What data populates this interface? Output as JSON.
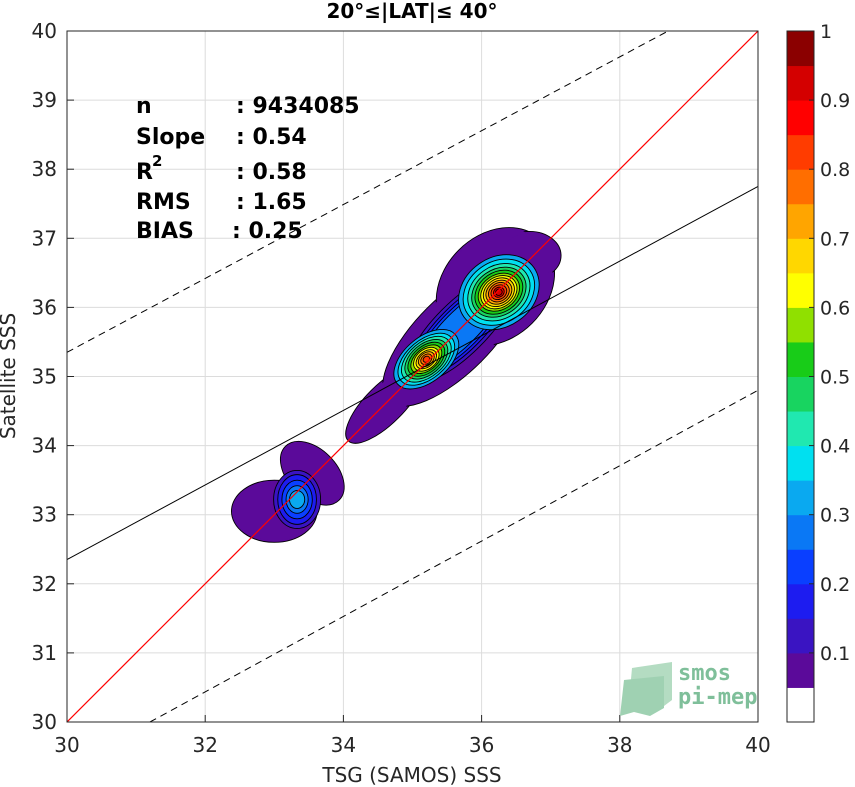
{
  "chart_data": {
    "type": "heatmap",
    "subtype": "density-contour-scatter",
    "title": "20°≤|LAT|≤ 40°",
    "xlabel": "TSG (SAMOS) SSS",
    "ylabel": "Satellite SSS",
    "xlim": [
      30,
      40
    ],
    "ylim": [
      30,
      40
    ],
    "x_ticks": [
      "30",
      "32",
      "34",
      "36",
      "38",
      "40"
    ],
    "y_ticks": [
      "30",
      "31",
      "32",
      "33",
      "34",
      "35",
      "36",
      "37",
      "38",
      "39",
      "40"
    ],
    "grid": true,
    "stats": {
      "n_label": "n",
      "n_value": ": 9434085",
      "slope_label": "Slope",
      "slope_value": ": 0.54",
      "r2_label": "R",
      "r2_sup": "2",
      "r2_value": ": 0.58",
      "rms_label": "RMS",
      "rms_value": ": 1.65",
      "bias_label": "BIAS",
      "bias_value": ": 0.25"
    },
    "lines": {
      "identity": {
        "from": [
          30,
          30
        ],
        "to": [
          40,
          40
        ],
        "color": "#ff0000"
      },
      "regression": {
        "from": [
          30,
          32.35
        ],
        "to": [
          40,
          37.75
        ],
        "color": "#000000"
      },
      "upper_dashed": {
        "from": [
          30,
          35.35
        ],
        "to": [
          38.7,
          40
        ],
        "color": "#000000"
      },
      "lower_dashed": {
        "from": [
          31.2,
          30
        ],
        "to": [
          40,
          34.8
        ],
        "color": "#000000"
      }
    },
    "colorbar": {
      "ticks": [
        "0.1",
        "0.2",
        "0.3",
        "0.4",
        "0.5",
        "0.6",
        "0.7",
        "0.8",
        "0.9",
        "1"
      ],
      "levels": [
        0.05,
        0.1,
        0.15,
        0.2,
        0.25,
        0.3,
        0.35,
        0.4,
        0.45,
        0.5,
        0.55,
        0.6,
        0.65,
        0.7,
        0.75,
        0.8,
        0.85,
        0.9,
        0.95,
        1.0
      ],
      "colors": [
        "#ffffff",
        "#5b0a9a",
        "#3a14c2",
        "#1d1cf0",
        "#0a3fff",
        "#0a78f5",
        "#0aa9f0",
        "#00e0f0",
        "#20e8b0",
        "#18d460",
        "#18cc18",
        "#90e000",
        "#ffff00",
        "#ffd700",
        "#ffa500",
        "#ff6e00",
        "#ff3c00",
        "#ff0000",
        "#d40000",
        "#8b0000"
      ]
    },
    "density_peaks": [
      {
        "x": 36.25,
        "y": 36.22,
        "peak": 0.97
      },
      {
        "x": 35.2,
        "y": 35.25,
        "peak": 0.85
      },
      {
        "x": 33.35,
        "y": 33.22,
        "peak": 0.33
      }
    ],
    "logo": {
      "line1": "smos",
      "line2": "pi-mep"
    }
  }
}
